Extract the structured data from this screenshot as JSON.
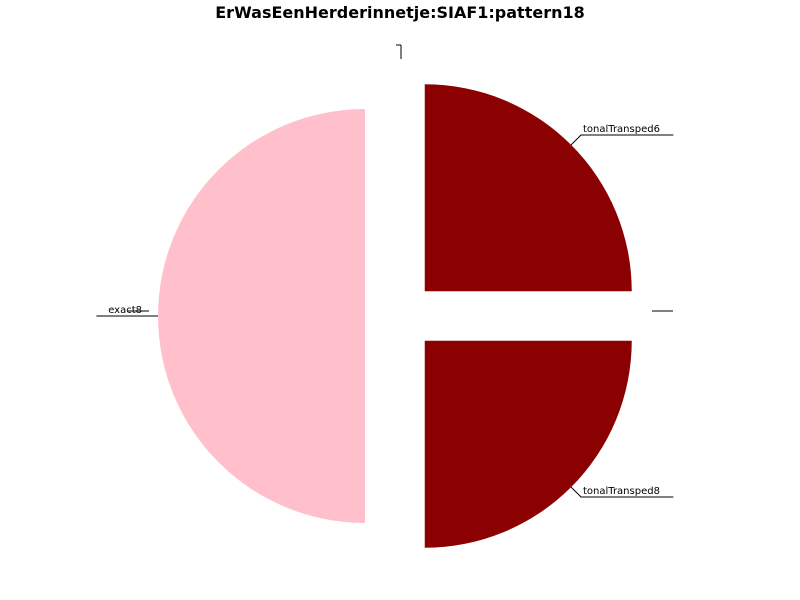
{
  "chart_data": {
    "type": "pie",
    "title": "ErWasEenHerderinnetje:SIAF1:pattern18",
    "slices": [
      {
        "label": "tonalTransped6",
        "value": 25,
        "color": "#8b0000"
      },
      {
        "label": "exact8",
        "value": 50,
        "color": "#ffc0cb"
      },
      {
        "label": "tonalTransped8",
        "value": 25,
        "color": "#8b0000"
      }
    ]
  }
}
